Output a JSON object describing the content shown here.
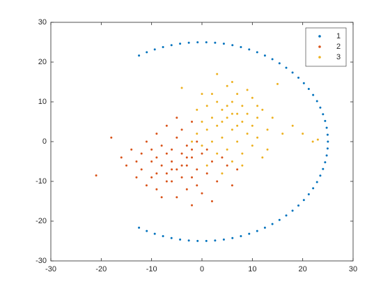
{
  "chart_data": {
    "type": "scatter",
    "xlim": [
      -30,
      30
    ],
    "ylim": [
      -30,
      30
    ],
    "xticks": [
      -30,
      -20,
      -10,
      0,
      10,
      20,
      30
    ],
    "yticks": [
      -30,
      -20,
      -10,
      0,
      10,
      20,
      30
    ],
    "legend": "northeast",
    "series": [
      {
        "name": "1",
        "color": "#0072BD",
        "x": [
          -12.5,
          -10.96,
          -9.37,
          -7.73,
          -6.05,
          -4.34,
          -2.61,
          -0.87,
          0.87,
          2.61,
          4.34,
          6.05,
          7.73,
          9.37,
          10.96,
          12.5,
          13.98,
          15.39,
          16.73,
          17.98,
          19.15,
          20.23,
          21.2,
          22.07,
          22.84,
          23.49,
          24.03,
          24.45,
          24.76,
          24.94,
          25,
          24.94,
          24.76,
          24.45,
          24.03,
          23.49,
          22.84,
          22.07,
          21.2,
          20.23,
          19.15,
          17.98,
          16.73,
          15.39,
          13.98,
          12.5,
          10.96,
          9.37,
          7.73,
          6.05,
          4.34,
          2.61,
          0.87,
          -0.87,
          -2.61,
          -4.34,
          -6.05,
          -7.73,
          -9.37,
          -10.96,
          -12.5
        ],
        "y": [
          21.65,
          22.47,
          23.18,
          23.78,
          24.26,
          24.62,
          24.86,
          24.98,
          24.98,
          24.86,
          24.62,
          24.26,
          23.78,
          23.18,
          22.47,
          21.65,
          20.73,
          19.7,
          18.58,
          17.37,
          16.07,
          14.69,
          13.25,
          11.74,
          10.17,
          8.55,
          6.89,
          5.2,
          3.48,
          1.74,
          0,
          -1.74,
          -3.48,
          -5.2,
          -6.89,
          -8.55,
          -10.17,
          -11.74,
          -13.25,
          -14.69,
          -16.07,
          -17.37,
          -18.58,
          -19.7,
          -20.73,
          -21.65,
          -22.47,
          -23.18,
          -23.78,
          -24.26,
          -24.62,
          -24.86,
          -24.98,
          -24.98,
          -24.86,
          -24.62,
          -24.26,
          -23.78,
          -23.18,
          -22.47,
          -21.65
        ]
      },
      {
        "name": "2",
        "color": "#D95319",
        "x": [
          -21,
          -18,
          -16,
          -15,
          -14,
          -13,
          -12,
          -12,
          -11,
          -11,
          -10,
          -10,
          -9,
          -9,
          -9,
          -8,
          -8,
          -8,
          -7,
          -7,
          -7,
          -6,
          -6,
          -6,
          -5,
          -5,
          -5,
          -5,
          -4,
          -4,
          -4,
          -3,
          -3,
          -3,
          -2,
          -2,
          -2,
          -2,
          -1,
          -1,
          -1,
          0,
          0,
          1,
          1,
          2,
          2,
          3,
          4,
          5,
          6,
          7,
          -13,
          -10,
          -7,
          -4,
          -3,
          -9,
          -6,
          -2
        ],
        "y": [
          -8.5,
          1,
          -4,
          -6,
          -2,
          -9,
          -3,
          -7,
          0,
          -11,
          -5,
          -9,
          2,
          -4,
          -12,
          -1,
          -6,
          -14,
          4,
          -3,
          -8,
          -2,
          -10,
          -5,
          6,
          1,
          -7,
          -14,
          -3,
          -9,
          3,
          -1,
          -6,
          -12,
          5,
          -4,
          -9,
          -16,
          0,
          -7,
          -11,
          -3,
          -13,
          -2,
          -8,
          -5,
          -15,
          -10,
          -4,
          -6,
          -11,
          -7,
          -5,
          -2,
          -10,
          -6,
          -4,
          -8,
          -7,
          -2
        ]
      },
      {
        "name": "3",
        "color": "#EDB120",
        "x": [
          -2,
          -1,
          0,
          0,
          1,
          1,
          2,
          2,
          2,
          3,
          3,
          3,
          4,
          4,
          5,
          5,
          5,
          6,
          6,
          6,
          7,
          7,
          7,
          8,
          8,
          8,
          9,
          9,
          10,
          10,
          10,
          11,
          11,
          12,
          12,
          13,
          14,
          15,
          16,
          18,
          20,
          22,
          23,
          3,
          -4,
          1,
          4,
          6,
          9,
          -1,
          0,
          5,
          7,
          8,
          11,
          13,
          4,
          6
        ],
        "y": [
          0,
          2,
          5,
          -1,
          9,
          3,
          12,
          6,
          0,
          4,
          -3,
          10,
          8,
          1,
          14,
          6,
          -2,
          3,
          10,
          -5,
          7,
          0,
          12,
          5,
          -3,
          9,
          2,
          7,
          11,
          -1,
          4,
          6,
          1,
          8,
          -4,
          3,
          6,
          14.5,
          2,
          4,
          2,
          0,
          0.5,
          17,
          13.5,
          -6,
          -8,
          15,
          13,
          8,
          12,
          9,
          4,
          -6,
          9,
          -2,
          5,
          7
        ]
      }
    ]
  }
}
